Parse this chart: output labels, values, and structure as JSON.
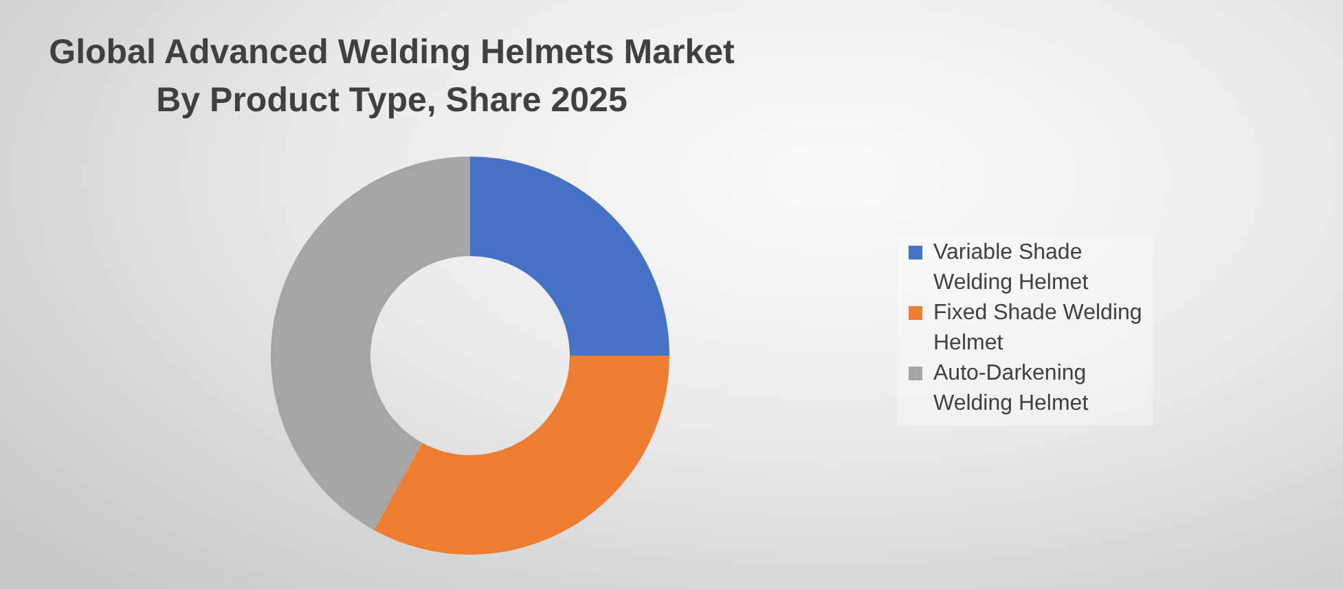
{
  "chart_data": {
    "type": "donut",
    "title": "Global Advanced Welding Helmets Market By Product Type, Share 2025",
    "categories": [
      "Variable Shade Welding Helmet",
      "Fixed Shade Welding Helmet",
      "Auto-Darkening Welding Helmet"
    ],
    "values": [
      25,
      33,
      42
    ],
    "colors": [
      "#4472c4",
      "#ed7d31",
      "#a5a5a5"
    ],
    "legend": "right"
  }
}
